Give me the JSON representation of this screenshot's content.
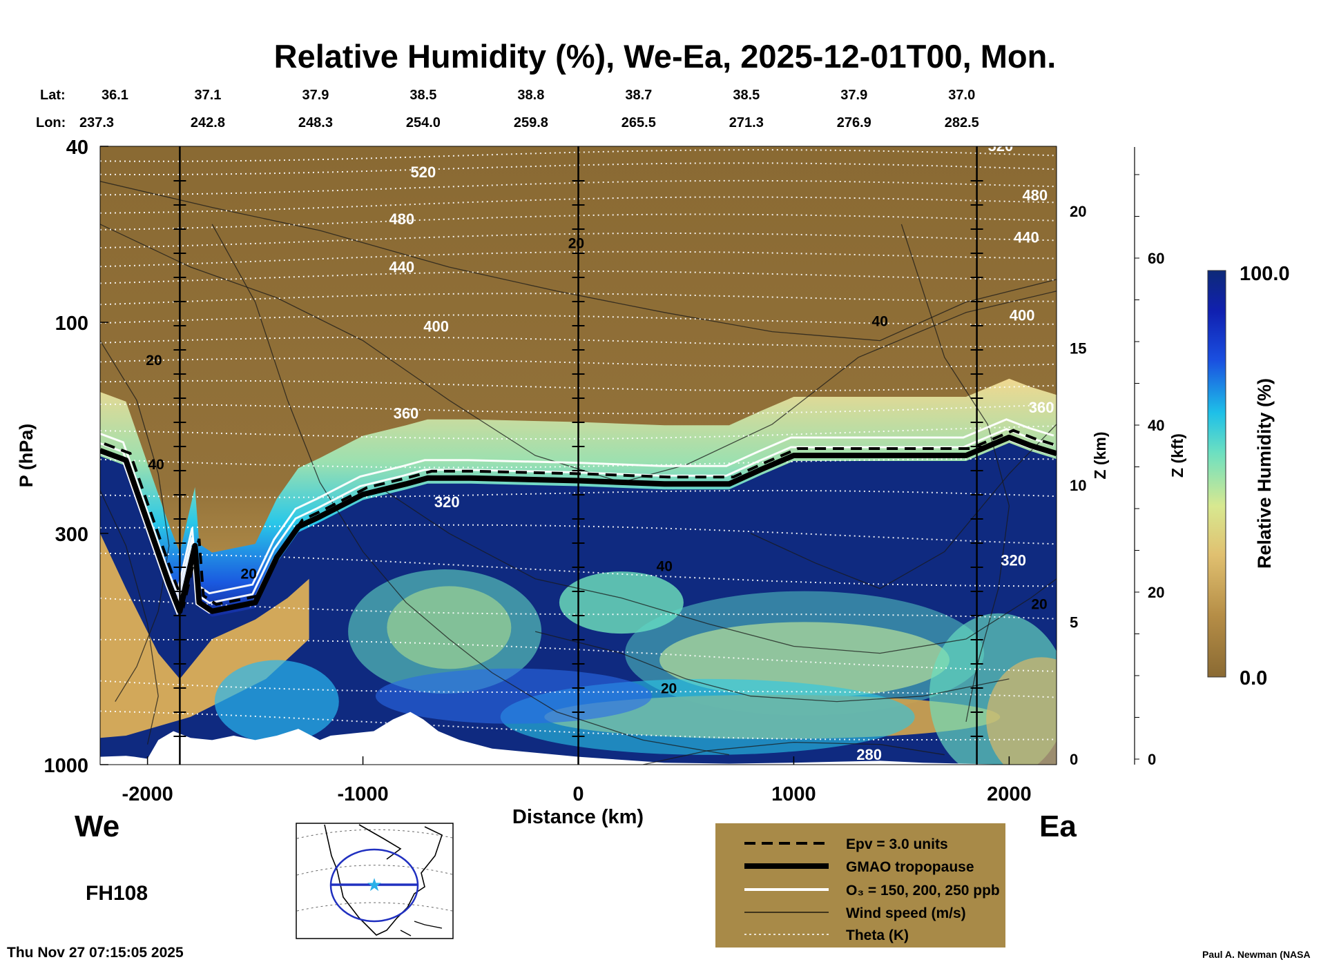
{
  "chart_data": {
    "type": "heatmap",
    "title": "Relative Humidity (%), We-Ea, 2025-12-01T00, Mon.",
    "xlabel": "Distance (km)",
    "ylabel": "P (hPa)",
    "y2label": "Z (km)",
    "y3label": "Z (kft)",
    "colorbar_label": "Relative Humidity (%)",
    "colorbar_max": "100.0",
    "colorbar_min": "0.0",
    "xlim": [
      -2220,
      2220
    ],
    "ylim_hpa": [
      1000,
      40
    ],
    "y_scale": "log",
    "x_ticks": [
      "-2000",
      "-1000",
      "0",
      "1000",
      "2000"
    ],
    "x_tick_values": [
      -2000,
      -1000,
      0,
      1000,
      2000
    ],
    "y_ticks": [
      "1000",
      "300",
      "100",
      "40"
    ],
    "y_tick_values": [
      1000,
      300,
      100,
      40
    ],
    "z_km_ticks": [
      "0",
      "5",
      "10",
      "15",
      "20"
    ],
    "z_km_values": [
      0,
      5,
      10,
      15,
      20
    ],
    "z_kft_ticks": [
      "0",
      "20",
      "40",
      "60"
    ],
    "z_kft_values": [
      0,
      20,
      40,
      60
    ],
    "left_end": "We",
    "right_end": "Ea",
    "lat_label": "Lat:",
    "lon_label": "Lon:",
    "lats": [
      "36.1",
      "37.1",
      "37.9",
      "38.5",
      "38.8",
      "38.7",
      "38.5",
      "37.9",
      "37.0"
    ],
    "lons": [
      "237.3",
      "242.8",
      "248.3",
      "254.0",
      "259.8",
      "265.5",
      "271.3",
      "276.9",
      "282.5"
    ],
    "station_x_km": [
      -2220,
      -1720,
      -1220,
      -720,
      -220,
      280,
      780,
      1280,
      1780
    ],
    "vertical_lines_km": [
      -1850,
      0,
      1850
    ],
    "tropopause": {
      "x": [
        -2220,
        -2100,
        -1900,
        -1850,
        -1780,
        -1760,
        -1700,
        -1500,
        -1400,
        -1300,
        -1200,
        -1000,
        -800,
        -700,
        -500,
        0,
        400,
        700,
        850,
        1000,
        1500,
        1800,
        2000,
        2100,
        2220
      ],
      "p": [
        195,
        205,
        390,
        450,
        320,
        430,
        450,
        430,
        340,
        290,
        275,
        245,
        232,
        225,
        225,
        228,
        232,
        232,
        215,
        200,
        200,
        200,
        182,
        190,
        198
      ]
    },
    "theta_labels": [
      {
        "text": "520",
        "x": -720,
        "p": 47
      },
      {
        "text": "480",
        "x": -820,
        "p": 60
      },
      {
        "text": "440",
        "x": -820,
        "p": 77
      },
      {
        "text": "400",
        "x": -660,
        "p": 105
      },
      {
        "text": "360",
        "x": -800,
        "p": 165
      },
      {
        "text": "320",
        "x": -610,
        "p": 262
      },
      {
        "text": "520",
        "x": 1960,
        "p": 41
      },
      {
        "text": "480",
        "x": 2120,
        "p": 53
      },
      {
        "text": "440",
        "x": 2080,
        "p": 66
      },
      {
        "text": "400",
        "x": 2060,
        "p": 99
      },
      {
        "text": "360",
        "x": 2150,
        "p": 160
      },
      {
        "text": "320",
        "x": 2020,
        "p": 355
      },
      {
        "text": "280",
        "x": 1350,
        "p": 975
      }
    ],
    "wind_labels": [
      {
        "text": "20",
        "x": -1970,
        "p": 125
      },
      {
        "text": "40",
        "x": -1960,
        "p": 215
      },
      {
        "text": "20",
        "x": -1530,
        "p": 380
      },
      {
        "text": "20",
        "x": -10,
        "p": 68
      },
      {
        "text": "40",
        "x": 1400,
        "p": 102
      },
      {
        "text": "40",
        "x": 400,
        "p": 365
      },
      {
        "text": "20",
        "x": 420,
        "p": 690
      },
      {
        "text": "20",
        "x": 2140,
        "p": 445
      }
    ]
  },
  "legend": {
    "items": [
      {
        "label": "Epv = 3.0 units",
        "style": "dashed-black"
      },
      {
        "label": "GMAO tropopause",
        "style": "thick-black"
      },
      {
        "label": "O₃ = 150, 200, 250 ppb",
        "style": "white"
      },
      {
        "label": "Wind speed (m/s)",
        "style": "thin-black"
      },
      {
        "label": "Theta (K)",
        "style": "dotted-white"
      }
    ],
    "background": "#a88a48"
  },
  "forecast_hour": "FH108",
  "timestamp": "Thu Nov 27 07:15:05 2025",
  "credit": "Paul A. Newman (NASA",
  "colors": {
    "dry": "#8a6a33",
    "moist": "#0f2a80",
    "tropopause": "#000000",
    "ozone": "#ffffff",
    "theta": "#ffffff"
  }
}
